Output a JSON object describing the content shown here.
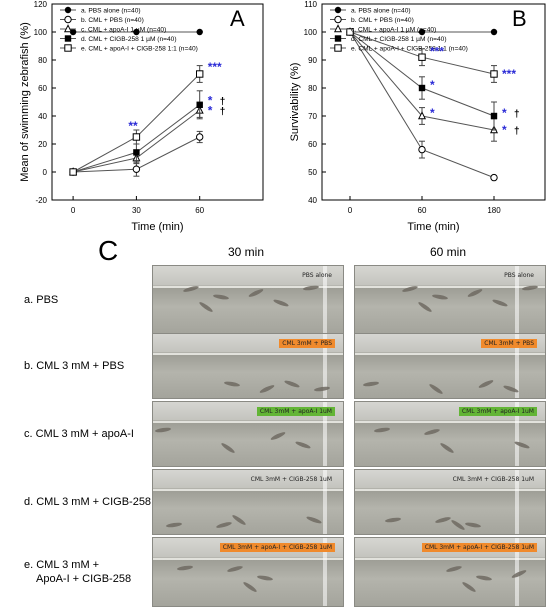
{
  "panel_letters": {
    "a": "A",
    "b": "B",
    "c": "C"
  },
  "chart_data": [
    {
      "type": "line",
      "panel": "A",
      "ylabel": "Mean of swimming zebrafish (%)",
      "xlabel": "Time (min)",
      "x": [
        0,
        30,
        60
      ],
      "x_ticks": [
        "0",
        "30",
        "60"
      ],
      "xlim": [
        -10,
        90
      ],
      "ylim": [
        -20,
        120
      ],
      "y_ticks": [
        "-20",
        "0",
        "20",
        "40",
        "60",
        "80",
        "100",
        "120"
      ],
      "legend": "top-left",
      "series": [
        {
          "name": "a. PBS alone (n=40)",
          "marker": "filled-circle",
          "values": [
            100,
            100,
            100
          ],
          "err": [
            0,
            0,
            0
          ]
        },
        {
          "name": "b. CML + PBS (n=40)",
          "marker": "open-circle",
          "values": [
            0,
            2,
            25
          ],
          "err": [
            0,
            5,
            4
          ]
        },
        {
          "name": "c. CML + apoA-I 1 µM (n=40)",
          "marker": "open-triangle",
          "values": [
            0,
            10,
            44
          ],
          "err": [
            0,
            4,
            5
          ]
        },
        {
          "name": "d. CML + CIGB-258 1 µM (n=40)",
          "marker": "filled-square",
          "values": [
            0,
            14,
            48
          ],
          "err": [
            0,
            6,
            10
          ]
        },
        {
          "name": "e. CML + apoA-I + CIGB-258 1:1 (n=40)",
          "marker": "open-square",
          "values": [
            0,
            25,
            70
          ],
          "err": [
            0,
            5,
            6
          ]
        }
      ],
      "annotations": [
        {
          "x": 30,
          "y": 33,
          "text": "**",
          "color": "#2b2bd6"
        },
        {
          "x": 60,
          "y": 75,
          "text": "***",
          "color": "#2b2bd6"
        },
        {
          "x": 60,
          "y": 51,
          "text": "*",
          "color": "#2b2bd6"
        },
        {
          "x": 60,
          "y": 51,
          "text": "†",
          "color": "#000000"
        },
        {
          "x": 60,
          "y": 44,
          "text": "*",
          "color": "#2b2bd6"
        },
        {
          "x": 60,
          "y": 44,
          "text": "†",
          "color": "#000000"
        }
      ]
    },
    {
      "type": "line",
      "panel": "B",
      "ylabel": "Survivability (%)",
      "xlabel": "Time (min)",
      "x_ticks": [
        "0",
        "60",
        "180"
      ],
      "ylim": [
        40,
        110
      ],
      "y_ticks": [
        "40",
        "50",
        "60",
        "70",
        "80",
        "90",
        "100",
        "110"
      ],
      "legend": "top-left",
      "series": [
        {
          "name": "a. PBS alone (n=40)",
          "marker": "filled-circle",
          "values": [
            100,
            100,
            100
          ],
          "err": [
            0,
            0,
            0
          ]
        },
        {
          "name": "b. CML + PBS (n=40)",
          "marker": "open-circle",
          "values": [
            100,
            58,
            48
          ],
          "err": [
            0,
            3,
            0
          ]
        },
        {
          "name": "c. CML + apoA-I 1 µM (n=40)",
          "marker": "open-triangle",
          "values": [
            100,
            70,
            65
          ],
          "err": [
            0,
            3,
            4
          ]
        },
        {
          "name": "d. CML + CIGB-258 1 µM (n=40)",
          "marker": "filled-square",
          "values": [
            100,
            80,
            70
          ],
          "err": [
            0,
            4,
            5
          ]
        },
        {
          "name": "e. CML + apoA-I + CIGB-258 1:1 (n=40)",
          "marker": "open-square",
          "values": [
            100,
            91,
            85
          ],
          "err": [
            0,
            3,
            3
          ]
        }
      ],
      "annotations": [
        {
          "x": 60,
          "y": 93,
          "text": "***",
          "color": "#2b2bd6"
        },
        {
          "x": 60,
          "y": 81,
          "text": "*",
          "color": "#2b2bd6"
        },
        {
          "x": 60,
          "y": 71,
          "text": "*",
          "color": "#2b2bd6"
        },
        {
          "x": 180,
          "y": 85,
          "text": "***",
          "color": "#2b2bd6"
        },
        {
          "x": 180,
          "y": 71,
          "text": "*",
          "color": "#2b2bd6"
        },
        {
          "x": 180,
          "y": 71,
          "text": "†",
          "color": "#000000"
        },
        {
          "x": 180,
          "y": 65,
          "text": "*",
          "color": "#2b2bd6"
        },
        {
          "x": 180,
          "y": 65,
          "text": "†",
          "color": "#000000"
        }
      ]
    }
  ],
  "photo_panel": {
    "columns": [
      "30 min",
      "60 min"
    ],
    "rows": [
      {
        "label_lines": [
          "a. PBS"
        ],
        "tags": [
          "PBS alone",
          "PBS alone"
        ],
        "tag_color": "transparent"
      },
      {
        "label_lines": [
          "b. CML 3 mM + PBS"
        ],
        "tags": [
          "CML 3mM + PBS",
          "CML 3mM + PBS"
        ],
        "tag_color": "#f08a2c"
      },
      {
        "label_lines": [
          "c. CML 3 mM + apoA-I"
        ],
        "tags": [
          "CML 3mM + apoA-I 1uM",
          "CML 3mM + apoA-I 1uM"
        ],
        "tag_color": "#63b536"
      },
      {
        "label_lines": [
          "d. CML 3 mM + CIGB-258"
        ],
        "tags": [
          "CML 3mM + CIGB-258 1uM",
          "CML 3mM + CIGB-258 1uM"
        ],
        "tag_color": "transparent"
      },
      {
        "label_lines": [
          "e. CML 3 mM +",
          "ApoA-I + CIGB-258"
        ],
        "tags": [
          "CML 3mM + apoA-I + CIGB-258 1uM",
          "CML 3mM + apoA-I + CIGB-258 1uM"
        ],
        "tag_color": "#f08a2c"
      }
    ]
  },
  "colors": {
    "star": "#2b2bd6",
    "axis": "#000000",
    "line": "#555555"
  }
}
